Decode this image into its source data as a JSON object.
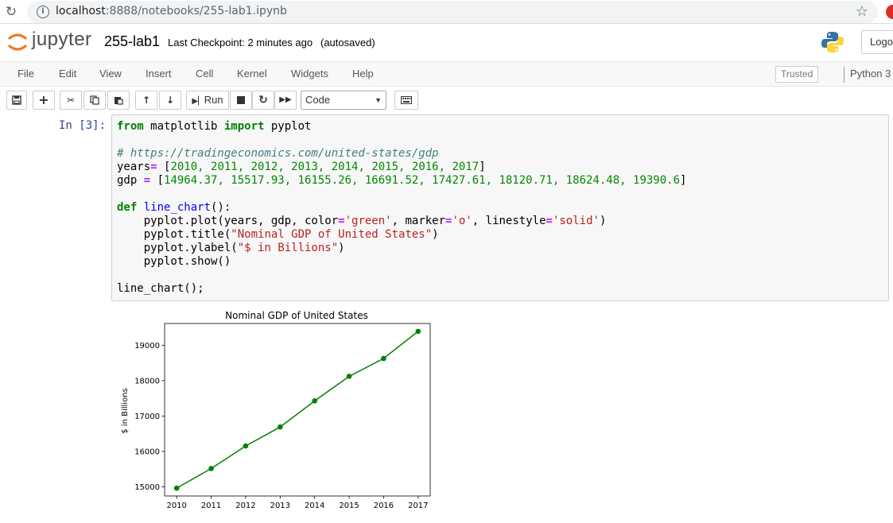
{
  "browser": {
    "url_host": "localhost",
    "url_rest": ":8888/notebooks/255-lab1.ipynb"
  },
  "header": {
    "logo_text": "jupyter",
    "notebook_name": "255-lab1",
    "checkpoint": "Last Checkpoint: 2 minutes ago",
    "autosave": "(autosaved)",
    "logout_label": "Logout"
  },
  "menu": {
    "items": [
      "File",
      "Edit",
      "View",
      "Insert",
      "Cell",
      "Kernel",
      "Widgets",
      "Help"
    ],
    "trusted_label": "Trusted",
    "kernel_label": "Python 3"
  },
  "toolbar": {
    "run_label": "Run",
    "cell_type": "Code"
  },
  "cell": {
    "prompt": "In [3]:",
    "lines": {
      "l1_kw1": "from",
      "l1_mod": " matplotlib ",
      "l1_kw2": "import",
      "l1_name": " pyplot",
      "l3_comment": "# https://tradingeconomics.com/united-states/gdp",
      "l4_name": "years",
      "l4_op": "=",
      "l4_open": " [",
      "l4_vals": "2010, 2011, 2012, 2013, 2014, 2015, 2016, 2017",
      "l4_close": "]",
      "l5_name": "gdp ",
      "l5_op": "=",
      "l5_open": " [",
      "l5_vals": "14964.37, 15517.93, 16155.26, 16691.52, 17427.61, 18120.71, 18624.48, 19390.6",
      "l5_close": "]",
      "l7_kw": "def",
      "l7_fn": " line_chart",
      "l7_rest": "():",
      "l8_a": "    pyplot.plot(years, gdp, color",
      "l8_eq1": "=",
      "l8_s1": "'green'",
      "l8_b": ", marker",
      "l8_eq2": "=",
      "l8_s2": "'o'",
      "l8_c": ", linestyle",
      "l8_eq3": "=",
      "l8_s3": "'solid'",
      "l8_d": ")",
      "l9_a": "    pyplot.title(",
      "l9_s": "\"Nominal GDP of United States\"",
      "l9_b": ")",
      "l10_a": "    pyplot.ylabel(",
      "l10_s": "\"$ in Billions\"",
      "l10_b": ")",
      "l11": "    pyplot.show()",
      "l13": "line_chart();"
    }
  },
  "chart_data": {
    "type": "line",
    "title": "Nominal GDP of United States",
    "xlabel": "",
    "ylabel": "$ in Billions",
    "x": [
      2010,
      2011,
      2012,
      2013,
      2014,
      2015,
      2016,
      2017
    ],
    "x_tick_labels": [
      "2010",
      "2011",
      "2012",
      "2013",
      "2014",
      "2015",
      "2016",
      "2017"
    ],
    "series": [
      {
        "values": [
          14964.37,
          15517.93,
          16155.26,
          16691.52,
          17427.61,
          18120.71,
          18624.48,
          19390.6
        ],
        "color": "#008000",
        "marker": "o",
        "linestyle": "solid"
      }
    ],
    "y_ticks": [
      15000,
      16000,
      17000,
      18000,
      19000
    ],
    "y_tick_labels": [
      "15000",
      "16000",
      "17000",
      "18000",
      "19000"
    ],
    "xlim": [
      2009.65,
      2017.35
    ],
    "ylim": [
      14743,
      19612
    ],
    "grid": false
  }
}
